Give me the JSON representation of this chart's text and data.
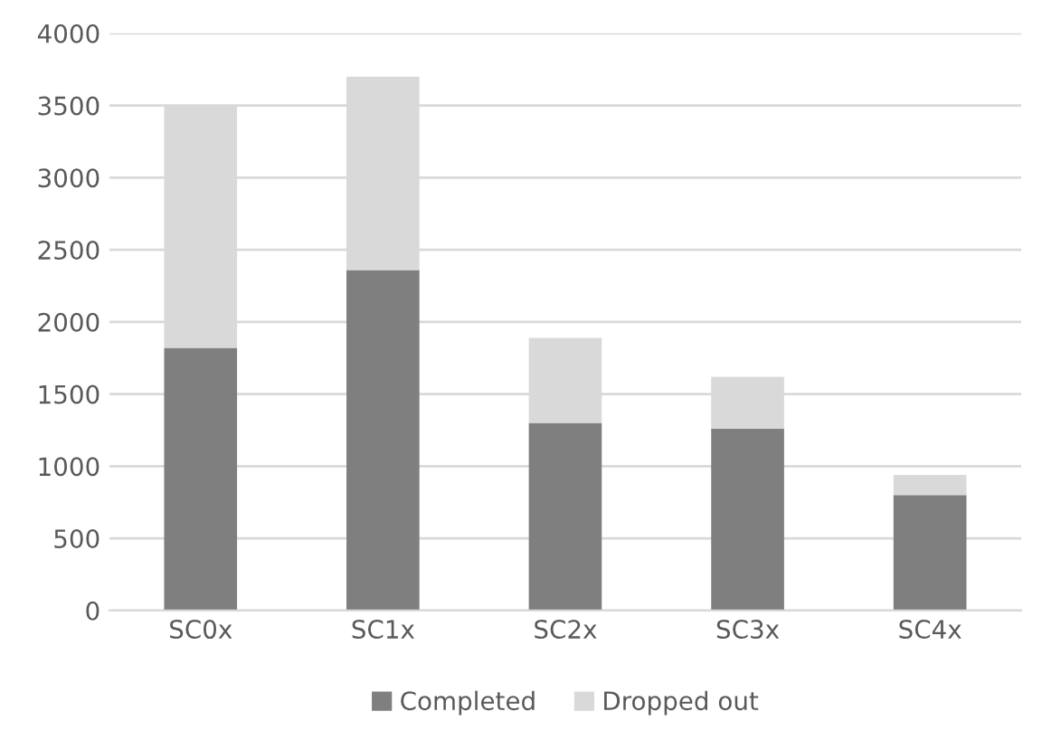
{
  "chart_data": {
    "type": "bar",
    "stacked": true,
    "categories": [
      "SC0x",
      "SC1x",
      "SC2x",
      "SC3x",
      "SC4x"
    ],
    "series": [
      {
        "name": "Completed",
        "color": "#7f7f7f",
        "values": [
          1820,
          2360,
          1300,
          1260,
          800
        ]
      },
      {
        "name": "Dropped out",
        "color": "#d9d9d9",
        "values": [
          1680,
          1340,
          590,
          360,
          140
        ]
      }
    ],
    "ylim": [
      0,
      4000
    ],
    "yticks": [
      0,
      500,
      1000,
      1500,
      2000,
      2500,
      3000,
      3500,
      4000
    ],
    "grid": "y",
    "legend": "bottom"
  }
}
